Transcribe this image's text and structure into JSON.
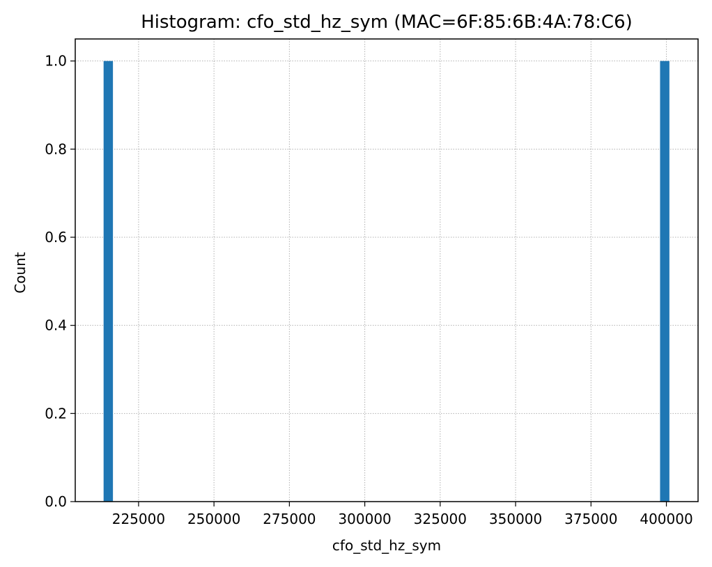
{
  "chart_data": {
    "type": "bar",
    "title": "Histogram: cfo_std_hz_sym (MAC=6F:85:6B:4A:78:C6)",
    "xlabel": "cfo_std_hz_sym",
    "ylabel": "Count",
    "xlim": [
      204000,
      410500
    ],
    "ylim": [
      0,
      1.05
    ],
    "xticks": [
      225000,
      250000,
      275000,
      300000,
      325000,
      350000,
      375000,
      400000
    ],
    "xtick_labels": [
      "225000",
      "250000",
      "275000",
      "300000",
      "325000",
      "350000",
      "375000",
      "400000"
    ],
    "yticks": [
      0.0,
      0.2,
      0.4,
      0.6,
      0.8,
      1.0
    ],
    "ytick_labels": [
      "0.0",
      "0.2",
      "0.4",
      "0.6",
      "0.8",
      "1.0"
    ],
    "bars": [
      {
        "x_start": 213400,
        "x_end": 216500,
        "value": 1
      },
      {
        "x_start": 397900,
        "x_end": 401000,
        "value": 1
      }
    ],
    "grid": true,
    "bar_color": "#1f77b4"
  }
}
